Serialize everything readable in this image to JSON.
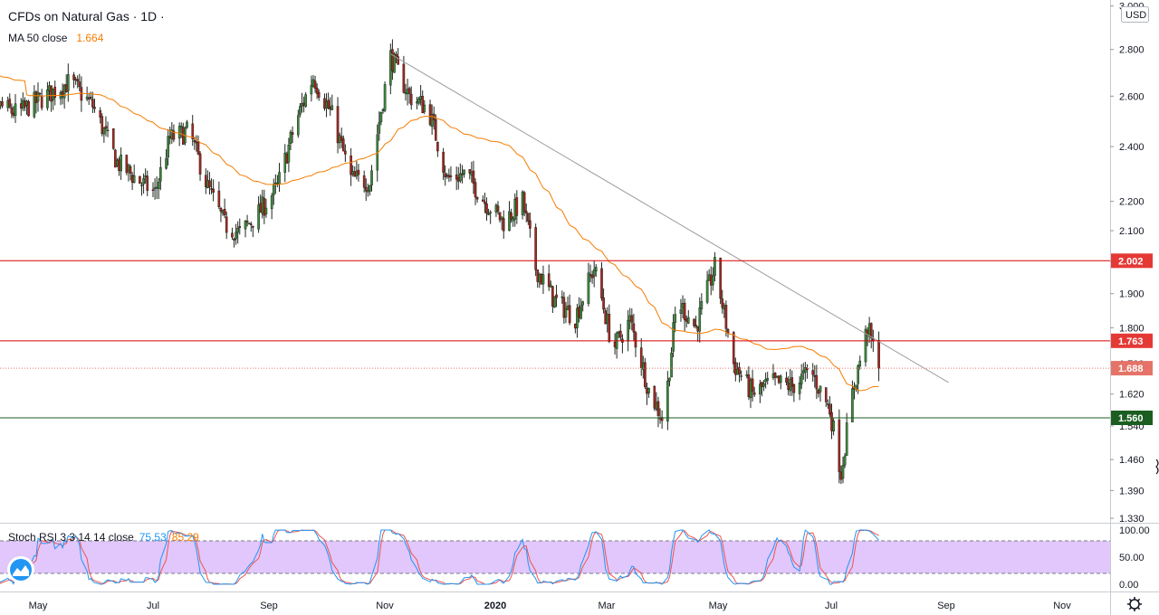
{
  "header": {
    "symbol_title": "CFDs on Natural Gas · 1D ·",
    "ma_label": "MA 50 close",
    "ma_value": "1.664"
  },
  "currency": "USD",
  "rsi_legend": {
    "label": "Stoch RSI 3 3 14 14 close",
    "k_value": "75.53",
    "d_value": "85.29"
  },
  "colors": {
    "up": "#26a69a",
    "down": "#ef5350",
    "candle_up_body": "#3c8a3c",
    "candle_down_body": "#a4281f",
    "ma": "#f57c00",
    "trendline": "#9e9e9e",
    "resistance": "#d50000",
    "support": "#1b5e20",
    "current_price": "#e57368",
    "rsi_k": "#2196f3",
    "rsi_d": "#ef5350",
    "rsi_band": "#e1c7fb"
  },
  "chart_data": {
    "type": "candlestick",
    "price_axis": {
      "scale": "log",
      "ticks": [
        "3.000",
        "2.800",
        "2.600",
        "2.400",
        "2.200",
        "2.100",
        "2.000",
        "1.900",
        "1.800",
        "1.700",
        "1.620",
        "1.540",
        "1.460",
        "1.390",
        "1.330"
      ]
    },
    "time_axis": {
      "labels": [
        "May",
        "Jul",
        "Sep",
        "Nov",
        "2020",
        "Mar",
        "May",
        "Jul",
        "Sep",
        "Nov"
      ]
    },
    "price_lines": [
      {
        "name": "resistance-upper",
        "value": 2.002,
        "label": "2.002",
        "style": "solid"
      },
      {
        "name": "resistance-lower",
        "value": 1.763,
        "label": "1.763",
        "style": "solid"
      },
      {
        "name": "current-price",
        "value": 1.688,
        "label": "1.688",
        "style": "dotted"
      },
      {
        "name": "support",
        "value": 1.56,
        "label": "1.560",
        "style": "solid"
      }
    ],
    "trendline": {
      "from": {
        "date": "2019-11-04",
        "price": 2.78
      },
      "to": {
        "date": "2020-08-26",
        "price": 1.65
      }
    },
    "anchors": [
      [
        "2019-03-28",
        2.72
      ],
      [
        "2019-04-10",
        2.56
      ],
      [
        "2019-04-20",
        2.53
      ],
      [
        "2019-05-05",
        2.6
      ],
      [
        "2019-05-18",
        2.66
      ],
      [
        "2019-05-30",
        2.56
      ],
      [
        "2019-06-12",
        2.34
      ],
      [
        "2019-06-24",
        2.27
      ],
      [
        "2019-07-02",
        2.23
      ],
      [
        "2019-07-10",
        2.43
      ],
      [
        "2019-07-20",
        2.46
      ],
      [
        "2019-07-30",
        2.25
      ],
      [
        "2019-08-08",
        2.12
      ],
      [
        "2019-08-16",
        2.09
      ],
      [
        "2019-08-26",
        2.16
      ],
      [
        "2019-09-05",
        2.25
      ],
      [
        "2019-09-15",
        2.5
      ],
      [
        "2019-09-24",
        2.68
      ],
      [
        "2019-10-04",
        2.52
      ],
      [
        "2019-10-14",
        2.28
      ],
      [
        "2019-10-24",
        2.27
      ],
      [
        "2019-11-04",
        2.77
      ],
      [
        "2019-11-14",
        2.6
      ],
      [
        "2019-11-24",
        2.55
      ],
      [
        "2019-12-04",
        2.28
      ],
      [
        "2019-12-14",
        2.3
      ],
      [
        "2019-12-24",
        2.2
      ],
      [
        "2020-01-03",
        2.13
      ],
      [
        "2020-01-13",
        2.2
      ],
      [
        "2020-01-20",
        1.98
      ],
      [
        "2020-01-30",
        1.88
      ],
      [
        "2020-02-10",
        1.83
      ],
      [
        "2020-02-20",
        1.98
      ],
      [
        "2020-03-01",
        1.74
      ],
      [
        "2020-03-10",
        1.82
      ],
      [
        "2020-03-20",
        1.63
      ],
      [
        "2020-03-28",
        1.55
      ],
      [
        "2020-04-04",
        1.88
      ],
      [
        "2020-04-14",
        1.8
      ],
      [
        "2020-04-24",
        1.98
      ],
      [
        "2020-05-04",
        1.7
      ],
      [
        "2020-05-14",
        1.62
      ],
      [
        "2020-05-24",
        1.65
      ],
      [
        "2020-06-04",
        1.64
      ],
      [
        "2020-06-14",
        1.68
      ],
      [
        "2020-06-24",
        1.58
      ],
      [
        "2020-06-30",
        1.43
      ],
      [
        "2020-07-06",
        1.62
      ],
      [
        "2020-07-14",
        1.8
      ],
      [
        "2020-07-20",
        1.69
      ]
    ],
    "ma50": {
      "name": "MA 50 close",
      "last": 1.664
    },
    "stoch_rsi": {
      "params": "3 3 14 14 close",
      "k_last": 75.53,
      "d_last": 85.29,
      "ticks": [
        "100.00",
        "50.00",
        "0.00"
      ],
      "band": [
        20,
        80
      ]
    }
  }
}
